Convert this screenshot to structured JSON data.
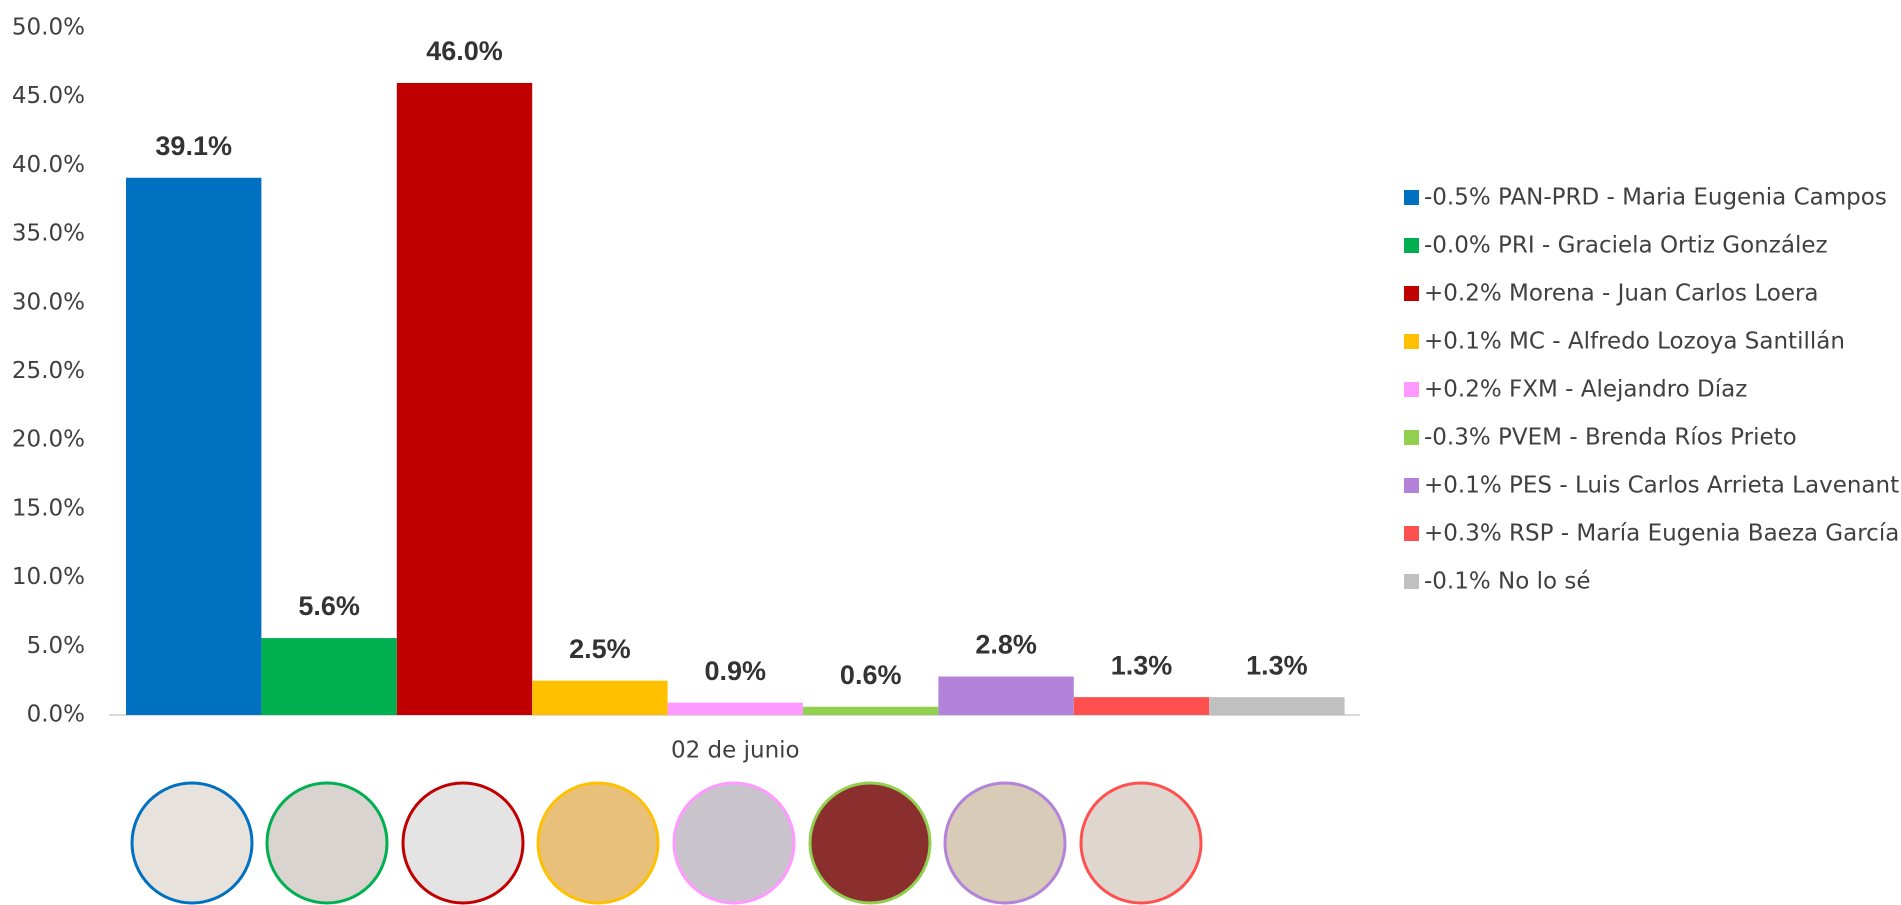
{
  "chart_data": {
    "type": "bar",
    "categories": [
      "02 de junio"
    ],
    "series": [
      {
        "name": "-0.5% PAN-PRD - Maria Eugenia Campos",
        "color": "#0070c0",
        "values": [
          39.1
        ],
        "value_labels": [
          "39.1%"
        ]
      },
      {
        "name": "-0.0% PRI - Graciela Ortiz González",
        "color": "#00b050",
        "values": [
          5.6
        ],
        "value_labels": [
          "5.6%"
        ]
      },
      {
        "name": "+0.2% Morena - Juan Carlos Loera",
        "color": "#c00000",
        "values": [
          46.0
        ],
        "value_labels": [
          "46.0%"
        ]
      },
      {
        "name": "+0.1% MC - Alfredo Lozoya Santillán",
        "color": "#ffc000",
        "values": [
          2.5
        ],
        "value_labels": [
          "2.5%"
        ]
      },
      {
        "name": "+0.2% FXM - Alejandro Díaz",
        "color": "#ff99ff",
        "values": [
          0.9
        ],
        "value_labels": [
          "0.9%"
        ]
      },
      {
        "name": "-0.3% PVEM - Brenda Ríos Prieto",
        "color": "#92d050",
        "values": [
          0.6
        ],
        "value_labels": [
          "0.6%"
        ]
      },
      {
        "name": "+0.1% PES - Luis Carlos Arrieta Lavenant",
        "color": "#b283d8",
        "values": [
          2.8
        ],
        "value_labels": [
          "2.8%"
        ]
      },
      {
        "name": "+0.3% RSP - María Eugenia Baeza García",
        "color": "#ff5050",
        "values": [
          1.3
        ],
        "value_labels": [
          "1.3%"
        ]
      },
      {
        "name": "-0.1% No lo sé",
        "color": "#c0c0c0",
        "values": [
          1.3
        ],
        "value_labels": [
          "1.3%"
        ]
      }
    ],
    "ylim": [
      0,
      50
    ],
    "yticks": [
      {
        "value": 0,
        "label": "0.0%"
      },
      {
        "value": 5,
        "label": "5.0%"
      },
      {
        "value": 10,
        "label": "10.0%"
      },
      {
        "value": 15,
        "label": "15.0%"
      },
      {
        "value": 20,
        "label": "20.0%"
      },
      {
        "value": 25,
        "label": "25.0%"
      },
      {
        "value": 30,
        "label": "30.0%"
      },
      {
        "value": 35,
        "label": "35.0%"
      },
      {
        "value": 40,
        "label": "40.0%"
      },
      {
        "value": 45,
        "label": "45.0%"
      },
      {
        "value": 50,
        "label": "50.0%"
      }
    ],
    "grid": false,
    "legend": "right"
  }
}
